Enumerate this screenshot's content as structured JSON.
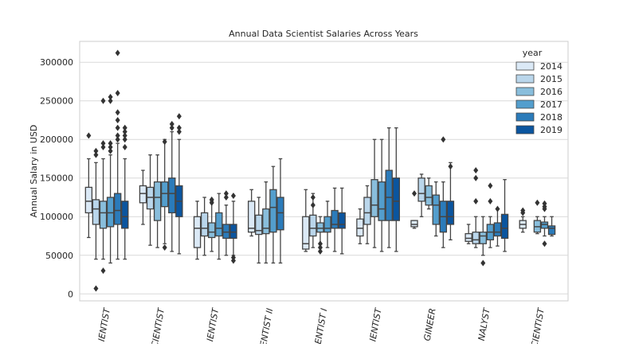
{
  "chart_data": {
    "type": "box",
    "title": "Annual Data Scientist Salaries Across Years",
    "y_label": "Annual Salary in USD",
    "legend_title": "year",
    "legend_position": "upper right",
    "grid": true,
    "categories": [
      "IENTIST",
      "CIENTIST",
      "IENTIST",
      "CIENTIST II",
      "CIENTIST I",
      "IENTIST",
      "GINEER",
      "NALYST",
      "CIENTIST"
    ],
    "ylim": [
      -9000,
      327000
    ],
    "yticks": [
      0,
      50000,
      100000,
      150000,
      200000,
      250000,
      300000
    ],
    "series": [
      {
        "name": "2014",
        "color": "#dbe9f6",
        "whislo": [
          73000,
          90000,
          45000,
          75000,
          55000,
          65000,
          85000,
          65000,
          80000
        ],
        "q1": [
          105000,
          118000,
          60000,
          80000,
          58000,
          75000,
          87000,
          68000,
          85000
        ],
        "med": [
          120000,
          130000,
          85000,
          85000,
          65000,
          85000,
          90000,
          72000,
          90000
        ],
        "q3": [
          138000,
          140000,
          100000,
          120000,
          100000,
          97000,
          95000,
          78000,
          95000
        ],
        "whishi": [
          175000,
          160000,
          120000,
          135000,
          135000,
          110000,
          95000,
          90000,
          100000
        ],
        "fliers": [
          [
            205000
          ],
          [],
          [],
          [],
          [],
          [],
          [
            130000
          ],
          [],
          [
            108000,
            105000
          ]
        ]
      },
      {
        "name": "2015",
        "color": "#bad6eb",
        "whislo": [
          45000,
          63000,
          50000,
          40000,
          60000,
          65000,
          100000,
          60000,
          null
        ],
        "q1": [
          90000,
          110000,
          75000,
          77000,
          75000,
          90000,
          120000,
          65000,
          null
        ],
        "med": [
          110000,
          125000,
          85000,
          82000,
          85000,
          105000,
          130000,
          70000,
          null
        ],
        "q3": [
          122000,
          138000,
          105000,
          102000,
          102000,
          125000,
          150000,
          80000,
          null
        ],
        "whishi": [
          170000,
          180000,
          125000,
          125000,
          130000,
          140000,
          155000,
          100000,
          null
        ],
        "fliers": [
          [
            185000,
            180000,
            7000
          ],
          [],
          [],
          [],
          [
            125000,
            115000
          ],
          [],
          [],
          [
            160000,
            150000,
            120000
          ],
          []
        ]
      },
      {
        "name": "2016",
        "color": "#89bedc",
        "whislo": [
          45000,
          60000,
          55000,
          40000,
          60000,
          60000,
          110000,
          50000,
          78000
        ],
        "q1": [
          85000,
          95000,
          73000,
          78000,
          80000,
          100000,
          115000,
          65000,
          80000
        ],
        "med": [
          105000,
          125000,
          80000,
          85000,
          85000,
          115000,
          125000,
          75000,
          87000
        ],
        "q3": [
          120000,
          145000,
          92000,
          110000,
          92000,
          148000,
          140000,
          80000,
          95000
        ],
        "whishi": [
          175000,
          180000,
          120000,
          145000,
          100000,
          200000,
          150000,
          100000,
          100000
        ],
        "fliers": [
          [
            250000,
            195000,
            190000,
            30000
          ],
          [],
          [
            122000,
            118000
          ],
          [],
          [
            65000,
            60000,
            55000
          ],
          [],
          [],
          [
            40000
          ],
          [
            118000
          ]
        ]
      },
      {
        "name": "2017",
        "color": "#539ecd",
        "whislo": [
          40000,
          65000,
          45000,
          40000,
          60000,
          55000,
          75000,
          60000,
          75000
        ],
        "q1": [
          87000,
          113000,
          75000,
          80000,
          80000,
          95000,
          90000,
          70000,
          85000
        ],
        "med": [
          105000,
          130000,
          85000,
          112000,
          85000,
          110000,
          115000,
          80000,
          90000
        ],
        "q3": [
          125000,
          145000,
          105000,
          135000,
          100000,
          145000,
          128000,
          90000,
          93000
        ],
        "whishi": [
          180000,
          200000,
          130000,
          165000,
          120000,
          200000,
          145000,
          100000,
          100000
        ],
        "fliers": [
          [
            255000,
            250000,
            195000,
            190000,
            185000
          ],
          [
            197000,
            60000
          ],
          [],
          [],
          [],
          [],
          [],
          [
            140000,
            120000
          ],
          [
            117000,
            113000,
            110000,
            65000
          ]
        ]
      },
      {
        "name": "2018",
        "color": "#2b7bba",
        "whislo": [
          45000,
          55000,
          50000,
          40000,
          55000,
          60000,
          60000,
          62000,
          75000
        ],
        "q1": [
          90000,
          105000,
          72000,
          83000,
          85000,
          95000,
          80000,
          75000,
          77000
        ],
        "med": [
          108000,
          130000,
          80000,
          105000,
          90000,
          125000,
          100000,
          80000,
          85000
        ],
        "q3": [
          130000,
          150000,
          90000,
          125000,
          108000,
          160000,
          120000,
          92000,
          88000
        ],
        "whishi": [
          195000,
          210000,
          115000,
          175000,
          137000,
          215000,
          145000,
          110000,
          100000
        ],
        "fliers": [
          [
            312000,
            260000,
            235000,
            225000,
            215000,
            205000,
            200000
          ],
          [
            220000,
            215000
          ],
          [
            130000,
            125000
          ],
          [],
          [],
          [],
          [
            200000
          ],
          [
            110000
          ],
          []
        ]
      },
      {
        "name": "2019",
        "color": "#0b559f",
        "whislo": [
          45000,
          52000,
          50000,
          null,
          52000,
          55000,
          70000,
          55000,
          null
        ],
        "q1": [
          85000,
          100000,
          72000,
          null,
          85000,
          95000,
          90000,
          72000,
          null
        ],
        "med": [
          100000,
          120000,
          80000,
          null,
          90000,
          120000,
          100000,
          85000,
          null
        ],
        "q3": [
          120000,
          140000,
          90000,
          null,
          105000,
          150000,
          120000,
          103000,
          null
        ],
        "whishi": [
          175000,
          200000,
          120000,
          null,
          137000,
          215000,
          170000,
          148000,
          null
        ],
        "fliers": [
          [
            215000,
            210000,
            205000,
            200000,
            190000
          ],
          [
            230000,
            215000,
            210000
          ],
          [
            127000,
            47000,
            43000
          ],
          [],
          [],
          [],
          [
            165000
          ],
          [],
          [
            53000
          ]
        ]
      }
    ]
  }
}
